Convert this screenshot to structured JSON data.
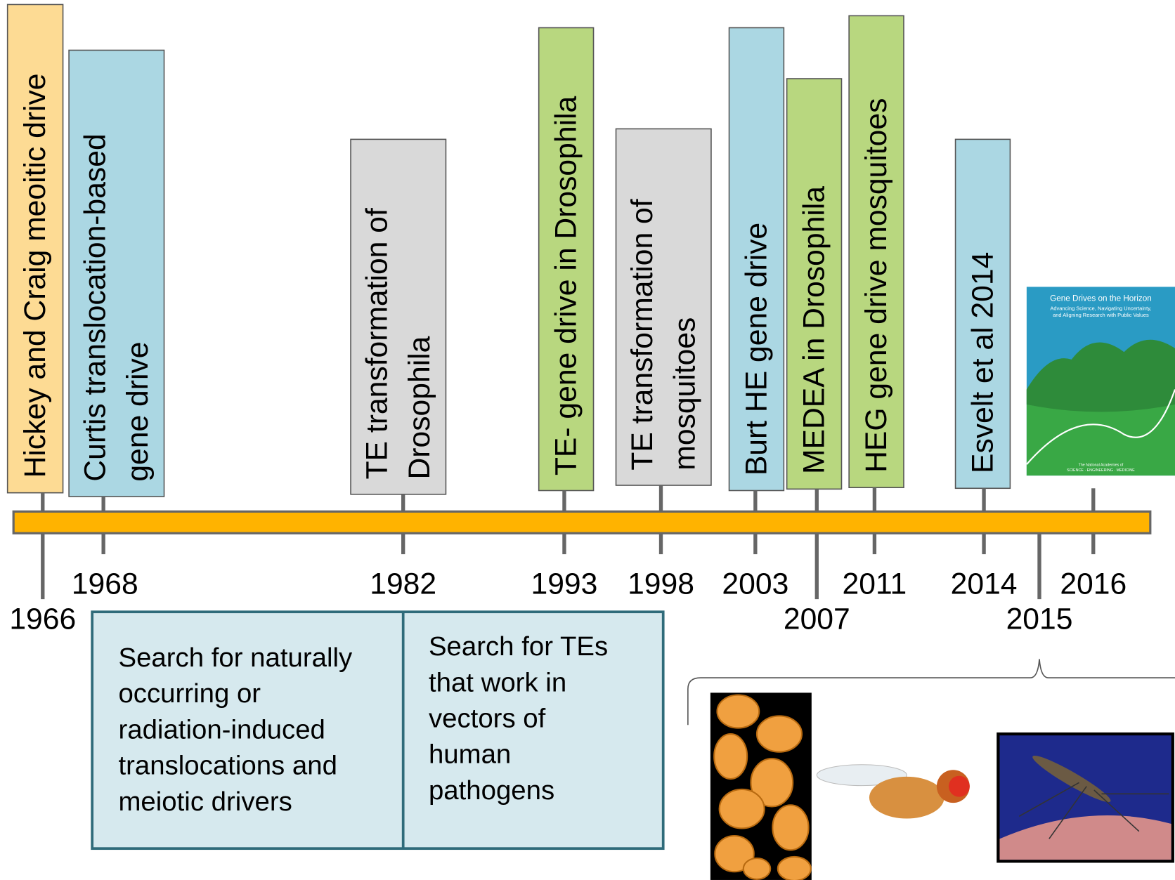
{
  "events": [
    {
      "label": [
        "Hickey and Craig meoitic drive"
      ],
      "year": "1966",
      "color": "#fddb94"
    },
    {
      "label": [
        "Curtis  translocation-based",
        "gene drive"
      ],
      "year": "1968",
      "color": "#abd7e3"
    },
    {
      "label": [
        "TE transformation of",
        "Drosophila"
      ],
      "year": "1982",
      "color": "#d9d9d9"
    },
    {
      "label": [
        "TE- gene drive in Drosophila"
      ],
      "year": "1993",
      "color": "#b8d77f"
    },
    {
      "label": [
        "TE transformation of",
        "mosquitoes"
      ],
      "year": "1998",
      "color": "#d9d9d9"
    },
    {
      "label": [
        "Burt  HE gene drive"
      ],
      "year": "2003",
      "color": "#abd7e3"
    },
    {
      "label": [
        "MEDEA in Drosophila"
      ],
      "year": "2007",
      "color": "#b8d77f"
    },
    {
      "label": [
        "HEG gene drive mosquitoes"
      ],
      "year": "2011",
      "color": "#b8d77f"
    },
    {
      "label": [
        "Esvelt et al 2014"
      ],
      "year": "2014",
      "color": "#abd7e3"
    }
  ],
  "book": {
    "year": "2015",
    "title": "Gene Drives on the Horizon",
    "subtitle": [
      "Advancing Science, Navigating Uncertainty,",
      "and Aligning Research with Public Values"
    ],
    "publisher": [
      "The National Academies of",
      "SCIENCE · ENGINEERING · MEDICINE"
    ]
  },
  "end_year": "2016",
  "periods": [
    {
      "lines": [
        "Search for naturally",
        "occurring or",
        "radiation-induced",
        "translocations and",
        "meiotic drivers"
      ]
    },
    {
      "lines": [
        "Search for  TEs",
        "that work in",
        "vectors of",
        "human",
        "pathogens"
      ]
    }
  ]
}
